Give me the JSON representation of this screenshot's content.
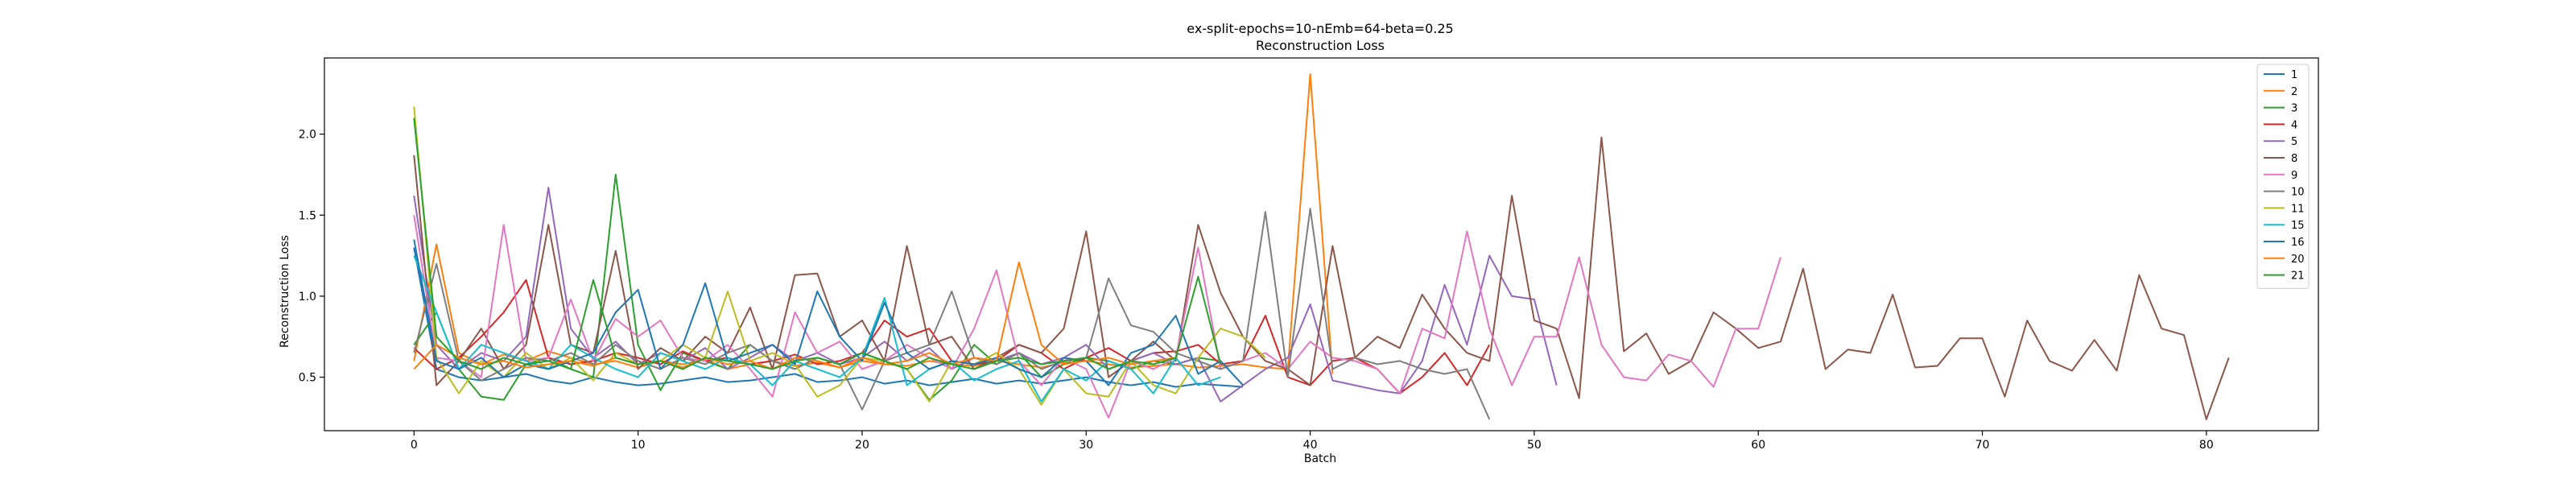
{
  "chart_data": {
    "type": "line",
    "title": "ex-split-epochs=10-nEmb=64-beta=0.25",
    "subtitle": "Reconstruction Loss",
    "xlabel": "Batch",
    "ylabel": "Reconstruction Loss",
    "xlim": [
      -4,
      85
    ],
    "ylim": [
      0.17,
      2.47
    ],
    "xticks": [
      0,
      10,
      20,
      30,
      40,
      50,
      60,
      70,
      80
    ],
    "yticks": [
      0.5,
      1.0,
      1.5,
      2.0
    ],
    "xtick_labels": [
      "0",
      "10",
      "20",
      "30",
      "40",
      "50",
      "60",
      "70",
      "80"
    ],
    "ytick_labels": [
      "0.5",
      "1.0",
      "1.5",
      "2.0"
    ],
    "grid": false,
    "legend_position": "top-right",
    "series": [
      {
        "name": "1",
        "color": "#1f77b4",
        "values": [
          1.3,
          0.55,
          0.5,
          0.48,
          0.5,
          0.52,
          0.48,
          0.46,
          0.5,
          0.47,
          0.45,
          0.46,
          0.48,
          0.5,
          0.47,
          0.48,
          0.5,
          0.52,
          0.47,
          0.48,
          0.5,
          0.46,
          0.48,
          0.45,
          0.47,
          0.49,
          0.46,
          0.48,
          0.46,
          0.48,
          0.5,
          0.47,
          0.45,
          0.47,
          0.44,
          0.46,
          0.45,
          0.44
        ]
      },
      {
        "name": "2",
        "color": "#ff7f0e",
        "values": [
          0.6,
          1.32,
          0.65,
          0.58,
          0.64,
          0.6,
          0.66,
          0.62,
          0.58,
          0.6,
          0.56,
          0.6,
          0.58,
          0.61,
          0.55,
          0.58,
          0.6,
          0.57,
          0.59,
          0.56,
          0.6,
          0.58,
          0.57,
          0.6,
          0.58,
          0.57,
          0.6,
          0.58,
          0.56,
          0.59,
          0.6,
          0.58,
          0.56,
          0.57,
          0.58,
          0.56,
          0.57,
          0.58,
          0.56,
          0.55,
          2.37,
          0.52
        ]
      },
      {
        "name": "3",
        "color": "#2ca02c",
        "values": [
          0.7,
          0.9,
          0.55,
          0.38,
          0.36,
          0.58,
          0.62,
          0.55,
          0.5,
          1.75,
          0.7,
          0.42,
          0.65,
          0.6,
          0.55,
          0.7,
          0.6,
          0.55,
          0.62,
          0.58,
          0.65,
          0.6,
          0.55,
          0.36,
          0.48,
          0.7,
          0.58,
          0.65,
          0.5,
          0.58,
          0.62,
          0.6,
          0.55,
          0.6,
          0.58,
          0.62,
          0.6
        ]
      },
      {
        "name": "4",
        "color": "#d62728",
        "values": [
          0.68,
          0.55,
          0.62,
          0.75,
          0.9,
          1.1,
          0.62,
          0.58,
          0.6,
          0.65,
          0.62,
          0.58,
          0.66,
          0.6,
          0.62,
          0.58,
          0.6,
          0.64,
          0.58,
          0.6,
          0.65,
          0.85,
          0.75,
          0.8,
          0.6,
          0.58,
          0.6,
          0.7,
          0.65,
          0.55,
          0.62,
          0.68,
          0.6,
          0.65,
          0.66,
          0.7,
          0.58,
          0.6,
          0.88,
          0.5,
          0.45,
          0.6,
          0.62,
          0.55,
          0.4,
          0.5,
          0.65,
          0.45,
          0.7
        ]
      },
      {
        "name": "5",
        "color": "#9467bd",
        "values": [
          1.62,
          0.7,
          0.55,
          0.65,
          0.6,
          0.75,
          1.67,
          0.8,
          0.62,
          0.72,
          0.58,
          0.65,
          0.6,
          0.68,
          0.55,
          0.62,
          0.7,
          0.6,
          0.65,
          0.58,
          0.62,
          0.72,
          0.6,
          0.68,
          0.55,
          0.62,
          0.6,
          0.65,
          0.58,
          0.62,
          0.7,
          0.55,
          0.6,
          0.65,
          0.58,
          0.62,
          0.35,
          0.45,
          0.55,
          0.62,
          0.95,
          0.48,
          0.45,
          0.42,
          0.4,
          0.6,
          1.07,
          0.7,
          1.25,
          1.0,
          0.98,
          0.45
        ]
      },
      {
        "name": "8",
        "color": "#8c564b",
        "values": [
          1.87,
          0.45,
          0.6,
          0.8,
          0.55,
          0.7,
          1.44,
          0.7,
          0.65,
          1.28,
          0.55,
          0.68,
          0.6,
          0.75,
          0.65,
          0.93,
          0.55,
          1.13,
          1.14,
          0.75,
          0.85,
          0.6,
          1.31,
          0.7,
          0.75,
          0.55,
          0.62,
          0.7,
          0.65,
          0.8,
          1.4,
          0.5,
          0.6,
          0.72,
          0.6,
          1.44,
          1.02,
          0.75,
          0.6,
          0.55,
          0.45,
          1.31,
          0.62,
          0.75,
          0.68,
          1.01,
          0.8,
          0.65,
          0.6,
          1.62,
          0.85,
          0.8,
          0.37,
          1.98,
          0.66,
          0.77,
          0.52,
          0.6,
          0.9,
          0.8,
          0.68,
          0.72,
          1.17,
          0.55,
          0.67,
          0.65,
          1.01,
          0.56,
          0.57,
          0.74,
          0.74,
          0.38,
          0.85,
          0.6,
          0.54,
          0.73,
          0.54,
          1.13,
          0.8,
          0.76,
          0.24,
          0.62
        ]
      },
      {
        "name": "9",
        "color": "#e377c2",
        "values": [
          1.5,
          0.62,
          0.6,
          0.5,
          1.44,
          0.6,
          0.62,
          0.98,
          0.6,
          0.86,
          0.75,
          0.85,
          0.62,
          0.6,
          0.7,
          0.55,
          0.38,
          0.9,
          0.65,
          0.72,
          0.55,
          0.6,
          0.7,
          0.62,
          0.55,
          0.8,
          1.16,
          0.6,
          0.45,
          0.62,
          0.55,
          0.25,
          0.6,
          0.55,
          0.62,
          1.3,
          0.55,
          0.6,
          0.65,
          0.55,
          0.72,
          0.62,
          0.6,
          0.55,
          0.4,
          0.8,
          0.74,
          1.4,
          0.8,
          0.45,
          0.75,
          0.75,
          1.24,
          0.7,
          0.5,
          0.48,
          0.64,
          0.6,
          0.44,
          0.8,
          0.8,
          1.24
        ]
      },
      {
        "name": "10",
        "color": "#7f7f7f",
        "values": [
          0.65,
          1.2,
          0.6,
          0.48,
          0.55,
          0.62,
          0.6,
          0.65,
          0.58,
          0.7,
          0.6,
          0.55,
          0.62,
          0.58,
          0.65,
          0.7,
          0.6,
          0.55,
          0.62,
          0.58,
          0.3,
          0.6,
          0.65,
          0.7,
          1.03,
          0.62,
          0.58,
          0.65,
          0.55,
          0.6,
          0.62,
          1.11,
          0.82,
          0.78,
          0.65,
          0.6,
          0.55,
          0.6,
          1.52,
          0.5,
          1.54,
          0.55,
          0.62,
          0.58,
          0.6,
          0.55,
          0.52,
          0.55,
          0.24
        ]
      },
      {
        "name": "11",
        "color": "#bcbd22",
        "values": [
          2.17,
          0.62,
          0.4,
          0.6,
          0.5,
          0.65,
          0.55,
          0.62,
          0.48,
          0.65,
          0.58,
          0.6,
          0.7,
          0.62,
          1.03,
          0.6,
          0.65,
          0.58,
          0.38,
          0.45,
          0.62,
          0.6,
          0.55,
          0.35,
          0.6,
          0.58,
          0.65,
          0.55,
          0.33,
          0.55,
          0.4,
          0.38,
          0.6,
          0.45,
          0.4,
          0.62,
          0.8,
          0.75,
          0.62
        ]
      },
      {
        "name": "15",
        "color": "#17becf",
        "values": [
          1.25,
          0.9,
          0.55,
          0.7,
          0.65,
          0.6,
          0.55,
          0.7,
          0.62,
          0.55,
          0.5,
          0.65,
          0.6,
          0.55,
          0.62,
          0.58,
          0.45,
          0.6,
          0.55,
          0.5,
          0.62,
          0.99,
          0.45,
          0.55,
          0.6,
          0.48,
          0.55,
          0.6,
          0.35,
          0.55,
          0.48,
          0.6,
          0.55,
          0.4,
          0.62,
          0.45,
          0.5
        ]
      },
      {
        "name": "16",
        "color": "#1f77b4",
        "values": [
          1.35,
          0.6,
          0.55,
          0.62,
          0.5,
          0.58,
          0.55,
          0.6,
          0.65,
          0.9,
          1.04,
          0.55,
          0.7,
          1.08,
          0.6,
          0.65,
          0.7,
          0.58,
          1.03,
          0.75,
          0.6,
          0.96,
          0.65,
          0.55,
          0.6,
          0.58,
          0.62,
          0.55,
          0.5,
          0.62,
          0.6,
          0.45,
          0.65,
          0.7,
          0.88,
          0.52,
          0.6,
          0.45
        ]
      },
      {
        "name": "20",
        "color": "#ff7f0e",
        "values": [
          0.55,
          0.7,
          0.62,
          0.58,
          0.6,
          0.56,
          0.58,
          0.6,
          0.57,
          0.62,
          0.58,
          0.6,
          0.56,
          0.62,
          0.58,
          0.6,
          0.55,
          0.62,
          0.6,
          0.56,
          0.62,
          0.58,
          0.6,
          0.65,
          0.58,
          0.62,
          0.6,
          1.21,
          0.7,
          0.58,
          0.6,
          0.62,
          0.58,
          0.6,
          0.62
        ]
      },
      {
        "name": "21",
        "color": "#2ca02c",
        "values": [
          2.1,
          0.75,
          0.6,
          0.55,
          0.62,
          0.58,
          0.6,
          0.55,
          1.1,
          0.62,
          0.58,
          0.6,
          0.55,
          0.62,
          0.6,
          0.58,
          0.55,
          0.6,
          0.62,
          0.58,
          0.65,
          0.6,
          0.55,
          0.62,
          0.58,
          0.55,
          0.6,
          0.62,
          0.58,
          0.6,
          0.62,
          0.55,
          0.6,
          0.58,
          0.62,
          1.12,
          0.58
        ]
      }
    ]
  }
}
